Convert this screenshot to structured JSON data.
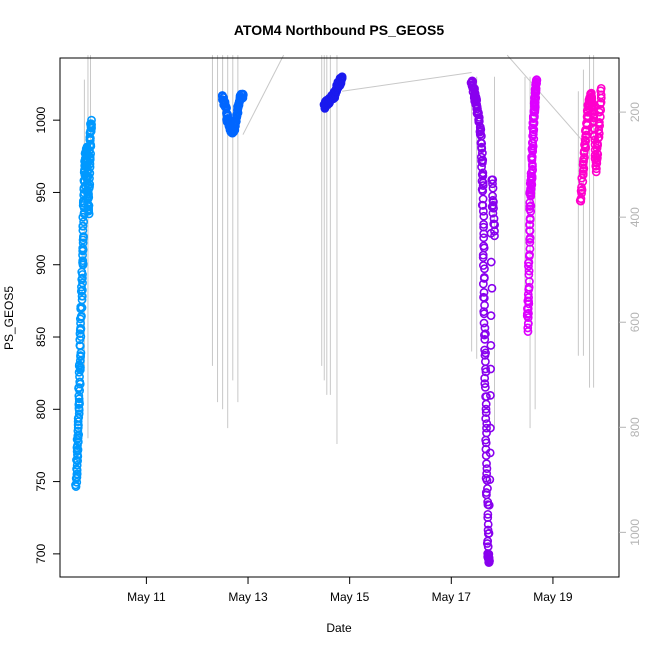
{
  "chart_data": {
    "type": "scatter",
    "title": "ATOM4 Northbound PS_GEOS5",
    "xlabel": "Date",
    "ylabel": "PS_GEOS5",
    "x_ticks": [
      "May 11",
      "May 13",
      "May 15",
      "May 17",
      "May 19"
    ],
    "x_tick_values": [
      11,
      13,
      15,
      17,
      19
    ],
    "xlim": [
      9.3,
      20.3
    ],
    "ylim": [
      684,
      1043
    ],
    "y_ticks": [
      700,
      750,
      800,
      850,
      900,
      950,
      1000
    ],
    "y2_ticks": [
      200,
      400,
      600,
      800,
      1000
    ],
    "y2lim": [
      1085,
      97
    ],
    "colors": {
      "flight_track": "#c8c8c8",
      "right_axis": "#b4b4b4"
    },
    "series": [
      {
        "color": "#0099ff",
        "x": [
          9.62,
          9.64,
          9.66,
          9.68,
          9.7,
          9.72,
          9.74,
          9.76,
          9.78,
          9.8,
          9.82,
          9.84,
          9.86,
          9.88,
          9.9,
          9.92
        ],
        "y": [
          746,
          770,
          790,
          815,
          840,
          870,
          900,
          930,
          955,
          975,
          980,
          960,
          935,
          970,
          990,
          1000
        ]
      },
      {
        "color": "#0066ff",
        "x": [
          12.5,
          12.55,
          12.6,
          12.65,
          12.7,
          12.75,
          12.8,
          12.85,
          12.9
        ],
        "y": [
          1017,
          1010,
          1000,
          995,
          992,
          998,
          1008,
          1015,
          1018
        ]
      },
      {
        "color": "#1a1aee",
        "x": [
          14.5,
          14.55,
          14.6,
          14.65,
          14.7,
          14.75,
          14.8,
          14.85
        ],
        "y": [
          1010,
          1012,
          1014,
          1015,
          1018,
          1022,
          1026,
          1029
        ]
      },
      {
        "color": "#8800ee",
        "x": [
          17.4,
          17.45,
          17.5,
          17.55,
          17.6,
          17.62,
          17.64,
          17.66,
          17.68,
          17.7,
          17.72,
          17.75,
          17.8,
          17.85
        ],
        "y": [
          1027,
          1020,
          1010,
          1000,
          980,
          950,
          900,
          850,
          800,
          750,
          700,
          694,
          960,
          920
        ]
      },
      {
        "color": "#dd00ff",
        "x": [
          18.5,
          18.52,
          18.54,
          18.56,
          18.58,
          18.6,
          18.62,
          18.64,
          18.66,
          18.68
        ],
        "y": [
          855,
          880,
          920,
          950,
          960,
          980,
          1000,
          1010,
          1020,
          1028
        ]
      },
      {
        "color": "#ff00cc",
        "x": [
          19.55,
          19.6,
          19.65,
          19.7,
          19.75,
          19.8,
          19.85,
          19.9,
          19.95
        ],
        "y": [
          943,
          970,
          990,
          1010,
          1018,
          1000,
          965,
          990,
          1022
        ]
      }
    ]
  }
}
